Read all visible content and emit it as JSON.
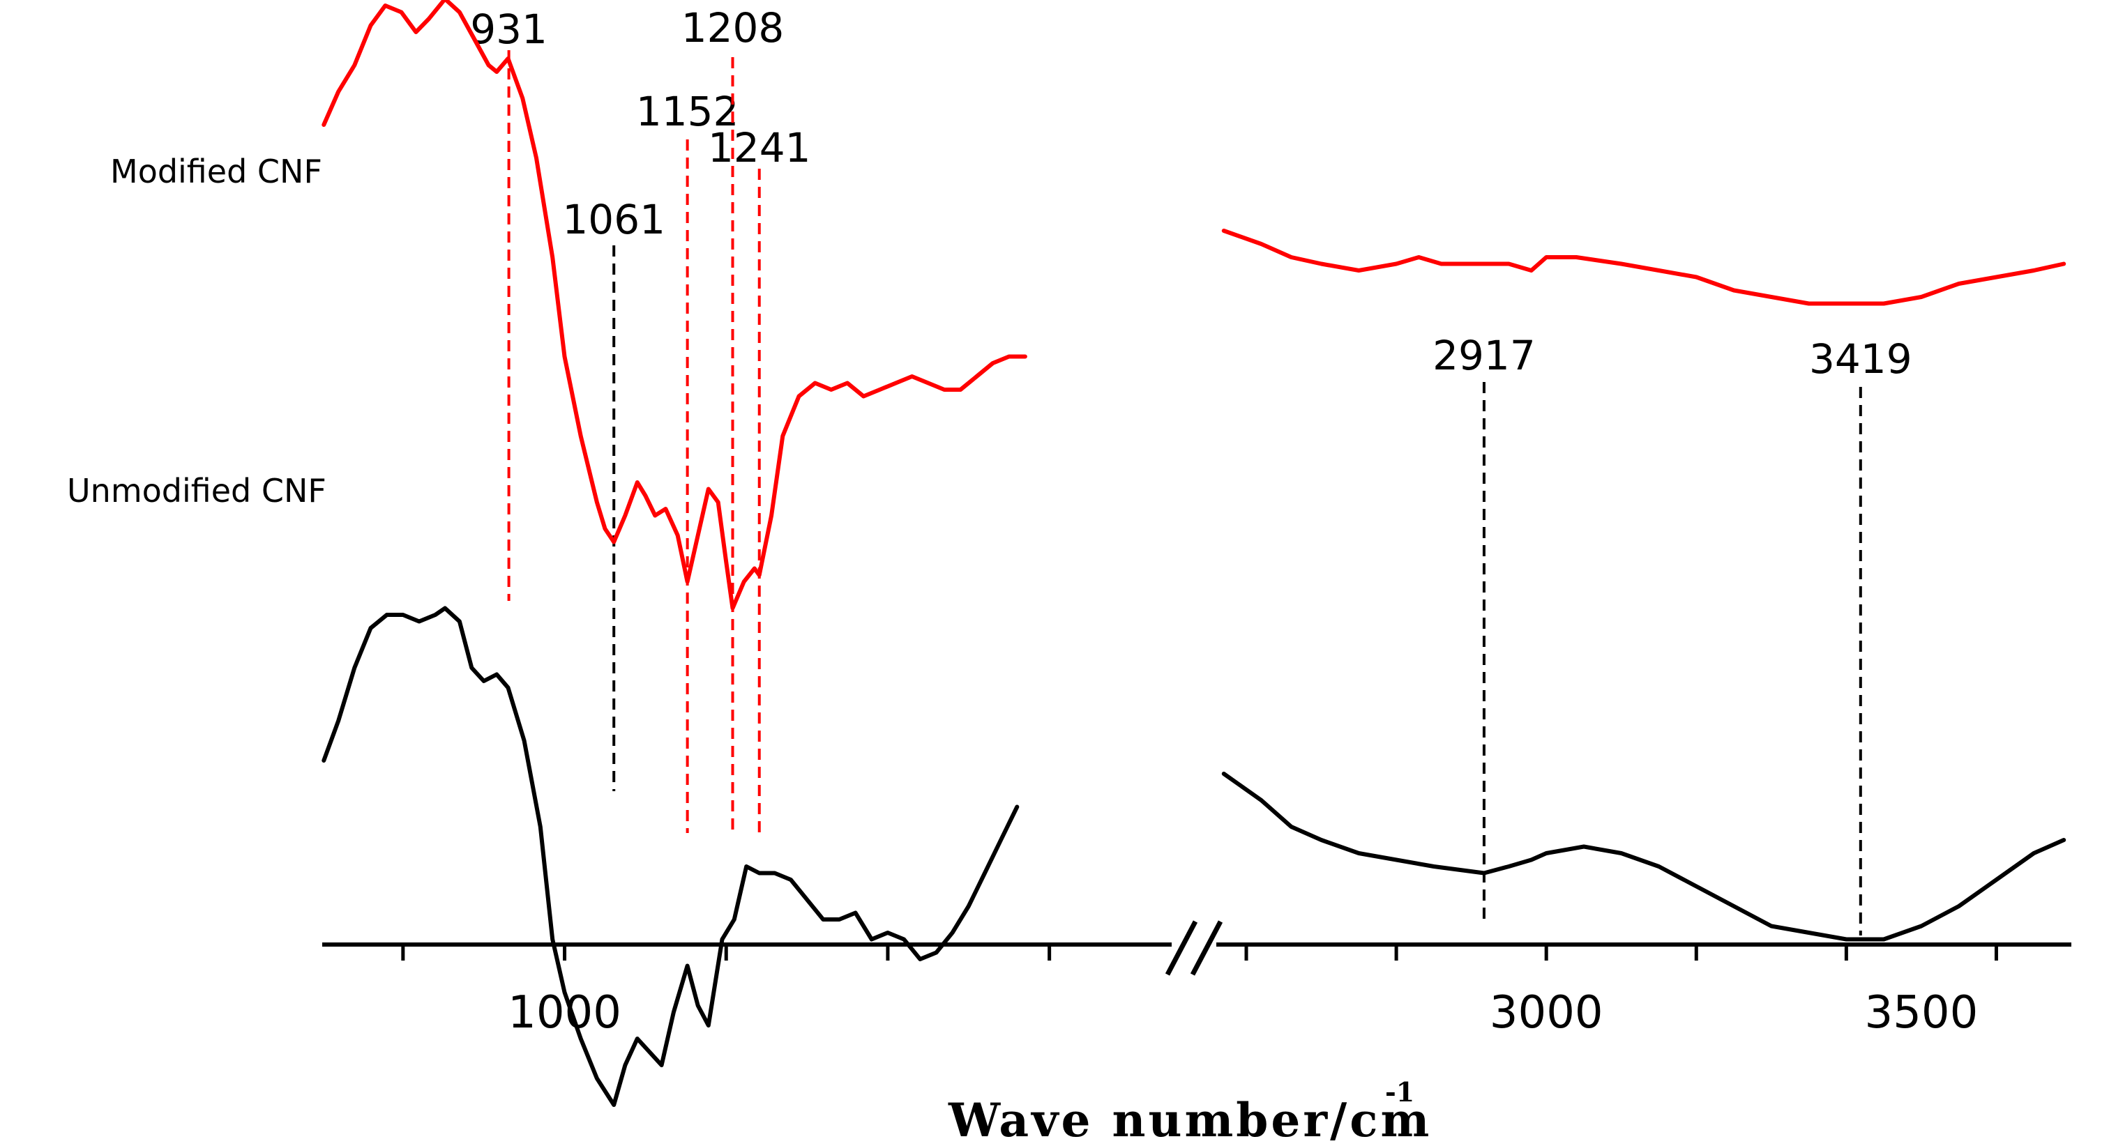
{
  "chart_data": {
    "type": "line",
    "title": "",
    "xlabel": "Wave number/cm",
    "xlabel_superscript": "-1",
    "ylabel": "",
    "x_axis_break": true,
    "x_tick_labels": [
      "1000",
      "3000",
      "3500"
    ],
    "x_ticks": [
      800,
      1000,
      1200,
      1400,
      1600,
      2600,
      2800,
      3000,
      3200,
      3400,
      3600
    ],
    "xlim_left": [
      700,
      1760
    ],
    "xlim_right": [
      2560,
      3700
    ],
    "grid": false,
    "legend": "labels beside curves on left",
    "series": [
      {
        "name": "Modified CNF",
        "color": "#ff0000",
        "left": [
          [
            702,
            78
          ],
          [
            720,
            83
          ],
          [
            740,
            87
          ],
          [
            760,
            93
          ],
          [
            778,
            96
          ],
          [
            798,
            95
          ],
          [
            816,
            92
          ],
          [
            832,
            94
          ],
          [
            852,
            97
          ],
          [
            870,
            95
          ],
          [
            888,
            91
          ],
          [
            906,
            87
          ],
          [
            916,
            86
          ],
          [
            930,
            88
          ],
          [
            948,
            82
          ],
          [
            965,
            73
          ],
          [
            985,
            58
          ],
          [
            1000,
            43
          ],
          [
            1020,
            31
          ],
          [
            1040,
            21
          ],
          [
            1050,
            17
          ],
          [
            1061,
            15
          ],
          [
            1075,
            19
          ],
          [
            1090,
            24
          ],
          [
            1100,
            22
          ],
          [
            1112,
            19
          ],
          [
            1125,
            20
          ],
          [
            1140,
            16
          ],
          [
            1152,
            9
          ],
          [
            1165,
            16
          ],
          [
            1178,
            23
          ],
          [
            1190,
            21
          ],
          [
            1200,
            12
          ],
          [
            1208,
            5
          ],
          [
            1222,
            9
          ],
          [
            1235,
            11
          ],
          [
            1241,
            10
          ],
          [
            1256,
            19
          ],
          [
            1270,
            31
          ],
          [
            1290,
            37
          ],
          [
            1310,
            39
          ],
          [
            1330,
            38
          ],
          [
            1350,
            39
          ],
          [
            1370,
            37
          ],
          [
            1390,
            38
          ],
          [
            1410,
            39
          ],
          [
            1430,
            40
          ],
          [
            1450,
            39
          ],
          [
            1470,
            38
          ],
          [
            1490,
            38
          ],
          [
            1510,
            40
          ],
          [
            1530,
            42
          ],
          [
            1550,
            43
          ],
          [
            1570,
            43
          ]
        ],
        "right": [
          [
            2570,
            62
          ],
          [
            2620,
            60
          ],
          [
            2660,
            58
          ],
          [
            2700,
            57
          ],
          [
            2750,
            56
          ],
          [
            2800,
            57
          ],
          [
            2830,
            58
          ],
          [
            2860,
            57
          ],
          [
            2917,
            57
          ],
          [
            2950,
            57
          ],
          [
            2980,
            56
          ],
          [
            3000,
            58
          ],
          [
            3040,
            58
          ],
          [
            3100,
            57
          ],
          [
            3150,
            56
          ],
          [
            3200,
            55
          ],
          [
            3250,
            53
          ],
          [
            3300,
            52
          ],
          [
            3350,
            51
          ],
          [
            3400,
            51
          ],
          [
            3419,
            51
          ],
          [
            3450,
            51
          ],
          [
            3500,
            52
          ],
          [
            3550,
            54
          ],
          [
            3600,
            55
          ],
          [
            3650,
            56
          ],
          [
            3690,
            57
          ]
        ]
      },
      {
        "name": "Unmodified CNF",
        "color": "#000000",
        "left": [
          [
            702,
            -18
          ],
          [
            720,
            -12
          ],
          [
            740,
            -4
          ],
          [
            760,
            2
          ],
          [
            780,
            4
          ],
          [
            800,
            4
          ],
          [
            820,
            3
          ],
          [
            840,
            4
          ],
          [
            852,
            5
          ],
          [
            870,
            3
          ],
          [
            885,
            -4
          ],
          [
            900,
            -6
          ],
          [
            916,
            -5
          ],
          [
            930,
            -7
          ],
          [
            950,
            -15
          ],
          [
            970,
            -28
          ],
          [
            985,
            -45
          ],
          [
            1000,
            -53
          ],
          [
            1020,
            -60
          ],
          [
            1040,
            -66
          ],
          [
            1061,
            -70
          ],
          [
            1075,
            -64
          ],
          [
            1090,
            -60
          ],
          [
            1105,
            -62
          ],
          [
            1120,
            -64
          ],
          [
            1135,
            -56
          ],
          [
            1152,
            -49
          ],
          [
            1165,
            -55
          ],
          [
            1178,
            -58
          ],
          [
            1195,
            -45
          ],
          [
            1210,
            -42
          ],
          [
            1225,
            -34
          ],
          [
            1241,
            -35
          ],
          [
            1260,
            -35
          ],
          [
            1280,
            -36
          ],
          [
            1300,
            -39
          ],
          [
            1320,
            -42
          ],
          [
            1340,
            -42
          ],
          [
            1360,
            -41
          ],
          [
            1380,
            -45
          ],
          [
            1400,
            -44
          ],
          [
            1420,
            -45
          ],
          [
            1440,
            -48
          ],
          [
            1460,
            -47
          ],
          [
            1480,
            -44
          ],
          [
            1500,
            -40
          ],
          [
            1520,
            -35
          ],
          [
            1540,
            -30
          ],
          [
            1560,
            -25
          ]
        ],
        "right": [
          [
            2570,
            -20
          ],
          [
            2620,
            -24
          ],
          [
            2660,
            -28
          ],
          [
            2700,
            -30
          ],
          [
            2750,
            -32
          ],
          [
            2800,
            -33
          ],
          [
            2850,
            -34
          ],
          [
            2917,
            -35
          ],
          [
            2950,
            -34
          ],
          [
            2980,
            -33
          ],
          [
            3000,
            -32
          ],
          [
            3050,
            -31
          ],
          [
            3100,
            -32
          ],
          [
            3150,
            -34
          ],
          [
            3200,
            -37
          ],
          [
            3250,
            -40
          ],
          [
            3300,
            -43
          ],
          [
            3350,
            -44
          ],
          [
            3400,
            -45
          ],
          [
            3419,
            -45
          ],
          [
            3450,
            -45
          ],
          [
            3500,
            -43
          ],
          [
            3550,
            -40
          ],
          [
            3600,
            -36
          ],
          [
            3650,
            -32
          ],
          [
            3690,
            -30
          ]
        ]
      }
    ],
    "peaks": [
      {
        "label": "931",
        "x": 931,
        "color": "#ff0000"
      },
      {
        "label": "1061",
        "x": 1061,
        "color": "#000000"
      },
      {
        "label": "1152",
        "x": 1152,
        "color": "#ff0000"
      },
      {
        "label": "1208",
        "x": 1208,
        "color": "#ff0000"
      },
      {
        "label": "1241",
        "x": 1241,
        "color": "#ff0000"
      },
      {
        "label": "2917",
        "x": 2917,
        "color": "#000000"
      },
      {
        "label": "3419",
        "x": 3419,
        "color": "#000000"
      }
    ]
  }
}
